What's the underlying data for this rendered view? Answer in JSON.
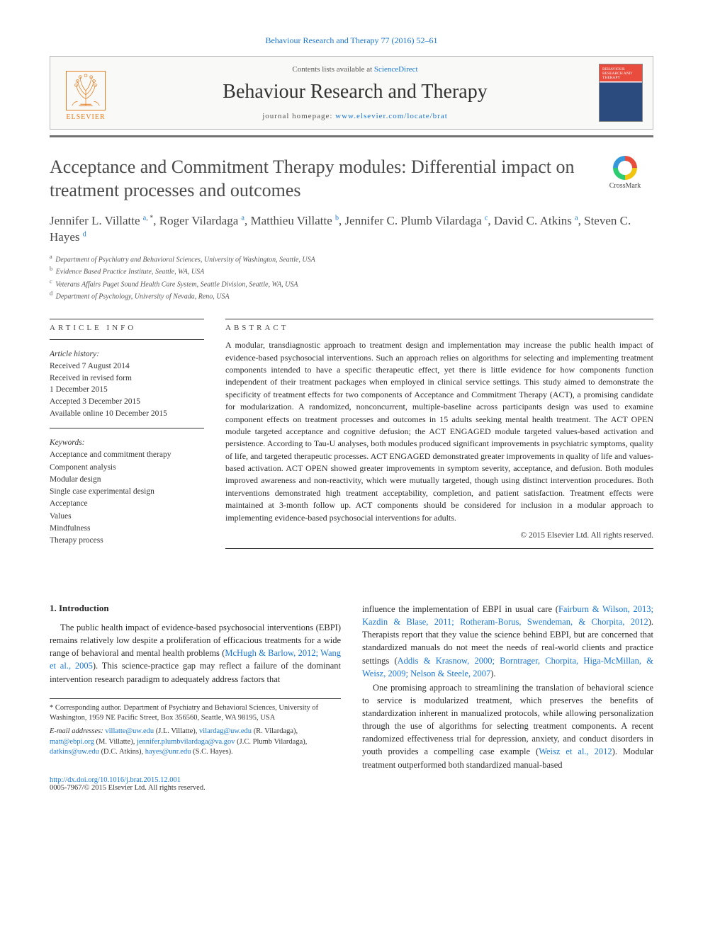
{
  "header": {
    "citation": "Behaviour Research and Therapy 77 (2016) 52–61",
    "contents_prefix": "Contents lists available at ",
    "contents_link": "ScienceDirect",
    "journal": "Behaviour Research and Therapy",
    "homepage_prefix": "journal homepage: ",
    "homepage_url": "www.elsevier.com/locate/brat",
    "publisher": "ELSEVIER",
    "cover_label": "BEHAVIOUR RESEARCH AND THERAPY"
  },
  "crossmark": {
    "label": "CrossMark"
  },
  "title": "Acceptance and Commitment Therapy modules: Differential impact on treatment processes and outcomes",
  "authors_html": "Jennifer L. Villatte <sup><a>a</a>, *</sup>, Roger Vilardaga <sup><a>a</a></sup>, Matthieu Villatte <sup><a>b</a></sup>, Jennifer C. Plumb Vilardaga <sup><a>c</a></sup>, David C. Atkins <sup><a>a</a></sup>, Steven C. Hayes <sup><a>d</a></sup>",
  "affiliations": [
    {
      "sup": "a",
      "text": "Department of Psychiatry and Behavioral Sciences, University of Washington, Seattle, USA"
    },
    {
      "sup": "b",
      "text": "Evidence Based Practice Institute, Seattle, WA, USA"
    },
    {
      "sup": "c",
      "text": "Veterans Affairs Puget Sound Health Care System, Seattle Division, Seattle, WA, USA"
    },
    {
      "sup": "d",
      "text": "Department of Psychology, University of Nevada, Reno, USA"
    }
  ],
  "article_info": {
    "heading": "ARTICLE INFO",
    "history_label": "Article history:",
    "history": [
      "Received 7 August 2014",
      "Received in revised form",
      "1 December 2015",
      "Accepted 3 December 2015",
      "Available online 10 December 2015"
    ],
    "keywords_label": "Keywords:",
    "keywords": [
      "Acceptance and commitment therapy",
      "Component analysis",
      "Modular design",
      "Single case experimental design",
      "Acceptance",
      "Values",
      "Mindfulness",
      "Therapy process"
    ]
  },
  "abstract": {
    "heading": "ABSTRACT",
    "text": "A modular, transdiagnostic approach to treatment design and implementation may increase the public health impact of evidence-based psychosocial interventions. Such an approach relies on algorithms for selecting and implementing treatment components intended to have a specific therapeutic effect, yet there is little evidence for how components function independent of their treatment packages when employed in clinical service settings. This study aimed to demonstrate the specificity of treatment effects for two components of Acceptance and Commitment Therapy (ACT), a promising candidate for modularization. A randomized, nonconcurrent, multiple-baseline across participants design was used to examine component effects on treatment processes and outcomes in 15 adults seeking mental health treatment. The ACT OPEN module targeted acceptance and cognitive defusion; the ACT ENGAGED module targeted values-based activation and persistence. According to Tau-U analyses, both modules produced significant improvements in psychiatric symptoms, quality of life, and targeted therapeutic processes. ACT ENGAGED demonstrated greater improvements in quality of life and values-based activation. ACT OPEN showed greater improvements in symptom severity, acceptance, and defusion. Both modules improved awareness and non-reactivity, which were mutually targeted, though using distinct intervention procedures. Both interventions demonstrated high treatment acceptability, completion, and patient satisfaction. Treatment effects were maintained at 3-month follow up. ACT components should be considered for inclusion in a modular approach to implementing evidence-based psychosocial interventions for adults.",
    "copyright": "© 2015 Elsevier Ltd. All rights reserved."
  },
  "body": {
    "section_heading": "1. Introduction",
    "col1_p1": "The public health impact of evidence-based psychosocial interventions (EBPI) remains relatively low despite a proliferation of efficacious treatments for a wide range of behavioral and mental health problems (",
    "col1_link1": "McHugh & Barlow, 2012; Wang et al., 2005",
    "col1_p1b": "). This science-practice gap may reflect a failure of the dominant intervention research paradigm to adequately address factors that",
    "col2_p1a": "influence the implementation of EBPI in usual care (",
    "col2_link1": "Fairburn & Wilson, 2013; Kazdin & Blase, 2011; Rotheram-Borus, Swendeman, & Chorpita, 2012",
    "col2_p1b": "). Therapists report that they value the science behind EBPI, but are concerned that standardized manuals do not meet the needs of real-world clients and practice settings (",
    "col2_link2": "Addis & Krasnow, 2000; Borntrager, Chorpita, Higa-McMillan, & Weisz, 2009; Nelson & Steele, 2007",
    "col2_p1c": ").",
    "col2_p2a": "One promising approach to streamlining the translation of behavioral science to service is modularized treatment, which preserves the benefits of standardization inherent in manualized protocols, while allowing personalization through the use of algorithms for selecting treatment components. A recent randomized effectiveness trial for depression, anxiety, and conduct disorders in youth provides a compelling case example (",
    "col2_link3": "Weisz et al., 2012",
    "col2_p2b": "). Modular treatment outperformed both standardized manual-based"
  },
  "footnotes": {
    "corr": "* Corresponding author. Department of Psychiatry and Behavioral Sciences, University of Washington, 1959 NE Pacific Street, Box 356560, Seattle, WA 98195, USA",
    "emails_label": "E-mail addresses: ",
    "emails": [
      {
        "addr": "villatte@uw.edu",
        "who": "(J.L. Villatte)"
      },
      {
        "addr": "vilardag@uw.edu",
        "who": "(R. Vilardaga)"
      },
      {
        "addr": "matt@ebpi.org",
        "who": "(M. Villatte)"
      },
      {
        "addr": "jennifer.plumbvilardaga@va.gov",
        "who": "(J.C. Plumb Vilardaga)"
      },
      {
        "addr": "datkins@uw.edu",
        "who": "(D.C. Atkins)"
      },
      {
        "addr": "hayes@unr.edu",
        "who": "(S.C. Hayes)."
      }
    ]
  },
  "doi": {
    "url": "http://dx.doi.org/10.1016/j.brat.2015.12.001",
    "issn": "0005-7967/© 2015 Elsevier Ltd. All rights reserved."
  },
  "colors": {
    "link": "#1976d2",
    "elsevier_orange": "#e67e22",
    "text": "#2a2a2a",
    "rule": "#333333"
  }
}
